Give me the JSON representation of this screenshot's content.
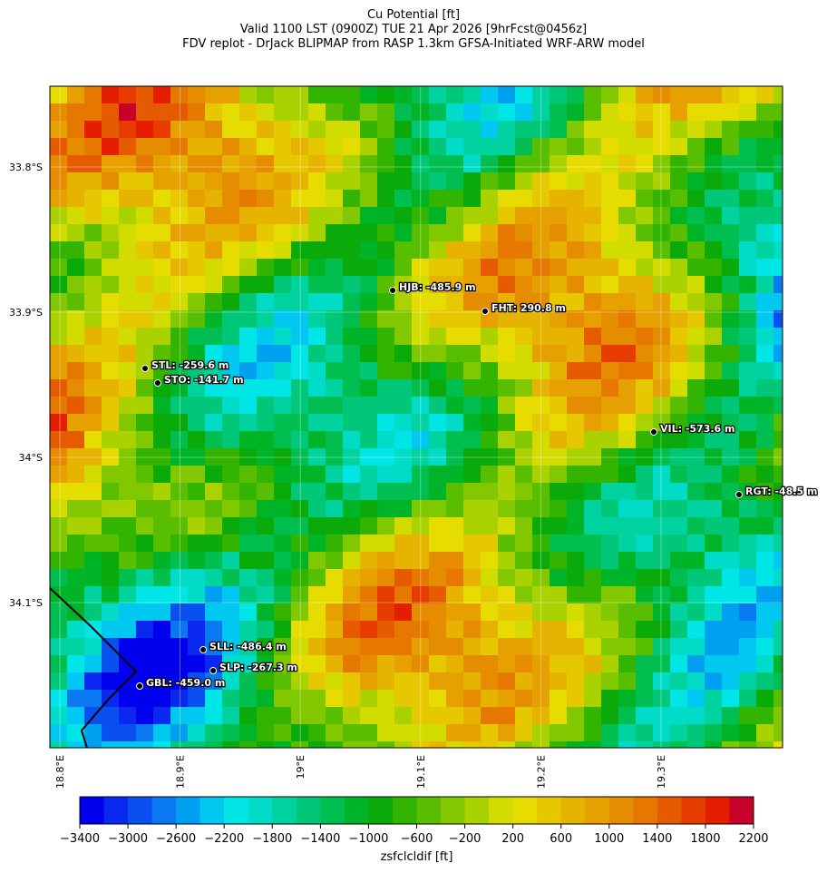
{
  "chart_data": {
    "type": "map",
    "title": [
      "Cu Potential [ft]",
      "Valid 1100 LST (0900Z) TUE 21 Apr 2026 [9hrFcst@0456z]",
      "FDV replot - DrJack BLIPMAP from RASP 1.3km GFSA-Initiated WRF-ARW model"
    ],
    "xlim": [
      18.7917,
      19.4011
    ],
    "ylim": [
      -34.2,
      -33.7444
    ],
    "xticks": [
      {
        "value": 18.8,
        "label": "18.8°E"
      },
      {
        "value": 18.9,
        "label": "18.9°E"
      },
      {
        "value": 19.0,
        "label": "19°E"
      },
      {
        "value": 19.1,
        "label": "19.1°E"
      },
      {
        "value": 19.2,
        "label": "19.2°E"
      },
      {
        "value": 19.3,
        "label": "19.3°E"
      }
    ],
    "yticks": [
      {
        "value": -33.8,
        "label": "33.8°S"
      },
      {
        "value": -33.9,
        "label": "33.9°S"
      },
      {
        "value": -34.0,
        "label": "34°S"
      },
      {
        "value": -34.1,
        "label": "34.1°S"
      }
    ],
    "stations": [
      {
        "label": "HJB: -485.9 m",
        "lon": 19.0768,
        "lat": -33.885
      },
      {
        "label": "FHT: 290.8 m",
        "lon": 19.1537,
        "lat": -33.8994
      },
      {
        "label": "STL: -259.6 m",
        "lon": 18.8709,
        "lat": -33.9388
      },
      {
        "label": "STO: -141.7 m",
        "lon": 18.8814,
        "lat": -33.9488
      },
      {
        "label": "VIL: -573.6 m",
        "lon": 19.294,
        "lat": -33.9825
      },
      {
        "label": "RGT: -48.5 m",
        "lon": 19.3649,
        "lat": -34.0256
      },
      {
        "label": "SLL: -486.4 m",
        "lon": 18.9192,
        "lat": -34.1325
      },
      {
        "label": "SLP: -267.3 m",
        "lon": 18.9275,
        "lat": -34.1469
      },
      {
        "label": "GBL: -459.0 m",
        "lon": 18.8664,
        "lat": -34.1575
      }
    ],
    "colorbar": {
      "label": "zsfclcldif [ft]",
      "lim": [
        -3400,
        2200
      ],
      "ticks": [
        {
          "value": -3400,
          "label": "−3400"
        },
        {
          "value": -3000,
          "label": "−3000"
        },
        {
          "value": -2600,
          "label": "−2600"
        },
        {
          "value": -2200,
          "label": "−2200"
        },
        {
          "value": -1800,
          "label": "−1800"
        },
        {
          "value": -1400,
          "label": "−1400"
        },
        {
          "value": -1000,
          "label": "−1000"
        },
        {
          "value": -600,
          "label": "−600"
        },
        {
          "value": -200,
          "label": "−200"
        },
        200,
        600,
        1000,
        1400,
        1800,
        2200
      ],
      "colors": [
        "#0000ee",
        "#0a28f0",
        "#0a50f0",
        "#0a78f0",
        "#00a0f0",
        "#00c8f0",
        "#00e6e6",
        "#00dcc8",
        "#00d2a0",
        "#00c878",
        "#00be50",
        "#00b428",
        "#0aaa0a",
        "#32b400",
        "#5abe00",
        "#82c800",
        "#aad200",
        "#d2dc00",
        "#e6dc00",
        "#e6c800",
        "#e6b400",
        "#e6a000",
        "#e68c00",
        "#e67800",
        "#e65a00",
        "#e63c00",
        "#e61e00",
        "#c8002a"
      ]
    }
  }
}
